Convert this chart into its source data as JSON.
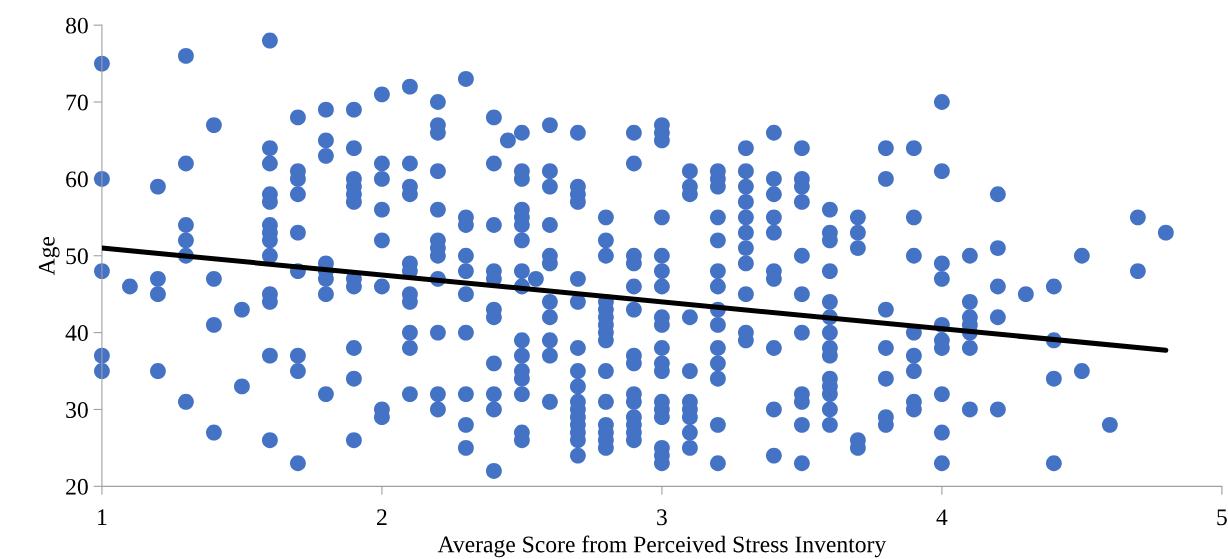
{
  "chart_data": {
    "type": "scatter",
    "xlabel": "Average Score from Perceived Stress Inventory",
    "ylabel": "Age",
    "xlim": [
      1,
      5
    ],
    "xticks": [
      1,
      2,
      3,
      4,
      5
    ],
    "ylim": [
      20,
      80
    ],
    "yticks": [
      20,
      30,
      40,
      50,
      60,
      70,
      80
    ],
    "series": [
      {
        "color": "#4472c4",
        "marker": "circle",
        "x": [
          1,
          1,
          1,
          1,
          1,
          1.1,
          1.2,
          1.2,
          1.2,
          1.2,
          1.3,
          1.3,
          1.3,
          1.3,
          1.3,
          1.3,
          1.4,
          1.4,
          1.4,
          1.4,
          1.5,
          1.5,
          1.6,
          1.6,
          1.6,
          1.6,
          1.6,
          1.6,
          1.6,
          1.6,
          1.6,
          1.6,
          1.6,
          1.6,
          1.6,
          1.7,
          1.7,
          1.7,
          1.7,
          1.7,
          1.7,
          1.7,
          1.7,
          1.7,
          1.8,
          1.8,
          1.8,
          1.8,
          1.8,
          1.8,
          1.8,
          1.8,
          1.9,
          1.9,
          1.9,
          1.9,
          1.9,
          1.9,
          1.9,
          1.9,
          1.9,
          1.9,
          1.9,
          2,
          2,
          2,
          2,
          2,
          2,
          2,
          2,
          2.1,
          2.1,
          2.1,
          2.1,
          2.1,
          2.1,
          2.1,
          2.1,
          2.1,
          2.1,
          2.1,
          2.2,
          2.2,
          2.2,
          2.2,
          2.2,
          2.2,
          2.2,
          2.2,
          2.2,
          2.2,
          2.2,
          2.2,
          2.3,
          2.3,
          2.3,
          2.3,
          2.3,
          2.3,
          2.3,
          2.3,
          2.3,
          2.3,
          2.4,
          2.4,
          2.4,
          2.4,
          2.4,
          2.4,
          2.4,
          2.4,
          2.4,
          2.4,
          2.4,
          2.45,
          2.5,
          2.5,
          2.5,
          2.5,
          2.5,
          2.5,
          2.5,
          2.5,
          2.5,
          2.5,
          2.5,
          2.5,
          2.5,
          2.5,
          2.5,
          2.5,
          2.55,
          2.6,
          2.6,
          2.6,
          2.6,
          2.6,
          2.6,
          2.6,
          2.6,
          2.6,
          2.6,
          2.6,
          2.7,
          2.7,
          2.7,
          2.7,
          2.7,
          2.7,
          2.7,
          2.7,
          2.7,
          2.7,
          2.7,
          2.7,
          2.7,
          2.7,
          2.7,
          2.7,
          2.8,
          2.8,
          2.8,
          2.8,
          2.8,
          2.8,
          2.8,
          2.8,
          2.8,
          2.8,
          2.8,
          2.8,
          2.8,
          2.8,
          2.8,
          2.9,
          2.9,
          2.9,
          2.9,
          2.9,
          2.9,
          2.9,
          2.9,
          2.9,
          2.9,
          2.9,
          2.9,
          2.9,
          2.9,
          3,
          3,
          3,
          3,
          3,
          3,
          3,
          3,
          3,
          3,
          3,
          3,
          3,
          3,
          3,
          3,
          3,
          3,
          3.1,
          3.1,
          3.1,
          3.1,
          3.1,
          3.1,
          3.1,
          3.1,
          3.1,
          3.1,
          3.2,
          3.2,
          3.2,
          3.2,
          3.2,
          3.2,
          3.2,
          3.2,
          3.2,
          3.2,
          3.2,
          3.2,
          3.2,
          3.2,
          3.3,
          3.3,
          3.3,
          3.3,
          3.3,
          3.3,
          3.3,
          3.3,
          3.3,
          3.3,
          3.3,
          3.4,
          3.4,
          3.4,
          3.4,
          3.4,
          3.4,
          3.4,
          3.4,
          3.4,
          3.4,
          3.5,
          3.5,
          3.5,
          3.5,
          3.5,
          3.5,
          3.5,
          3.5,
          3.5,
          3.5,
          3.5,
          3.6,
          3.6,
          3.6,
          3.6,
          3.6,
          3.6,
          3.6,
          3.6,
          3.6,
          3.6,
          3.6,
          3.6,
          3.6,
          3.6,
          3.7,
          3.7,
          3.7,
          3.7,
          3.7,
          3.8,
          3.8,
          3.8,
          3.8,
          3.8,
          3.8,
          3.8,
          3.9,
          3.9,
          3.9,
          3.9,
          3.9,
          3.9,
          3.9,
          3.9,
          4,
          4,
          4,
          4,
          4,
          4,
          4,
          4,
          4,
          4,
          4.1,
          4.1,
          4.1,
          4.1,
          4.1,
          4.1,
          4.1,
          4.2,
          4.2,
          4.2,
          4.2,
          4.2,
          4.3,
          4.4,
          4.4,
          4.4,
          4.4,
          4.5,
          4.5,
          4.6,
          4.7,
          4.7,
          4.8
        ],
        "values": [
          75,
          60,
          48,
          37,
          35,
          46,
          59,
          47,
          45,
          35,
          76,
          62,
          54,
          52,
          50,
          31,
          67,
          47,
          41,
          27,
          43,
          33,
          78,
          64,
          62,
          58,
          57,
          54,
          53,
          52,
          50,
          45,
          44,
          37,
          26,
          68,
          61,
          60,
          58,
          53,
          48,
          37,
          35,
          23,
          69,
          65,
          63,
          49,
          48,
          47,
          45,
          32,
          69,
          64,
          60,
          59,
          58,
          57,
          47,
          46,
          38,
          34,
          26,
          71,
          62,
          60,
          56,
          52,
          46,
          30,
          29,
          72,
          62,
          59,
          58,
          49,
          48,
          45,
          44,
          40,
          38,
          32,
          70,
          67,
          66,
          61,
          56,
          52,
          51,
          50,
          47,
          40,
          32,
          30,
          73,
          55,
          54,
          50,
          48,
          45,
          40,
          32,
          28,
          25,
          68,
          62,
          54,
          48,
          47,
          43,
          42,
          36,
          32,
          30,
          22,
          65,
          66,
          61,
          60,
          56,
          55,
          54,
          52,
          48,
          46,
          39,
          37,
          35,
          34,
          32,
          27,
          26,
          47,
          67,
          61,
          59,
          54,
          50,
          49,
          44,
          42,
          39,
          37,
          31,
          66,
          59,
          58,
          57,
          47,
          44,
          38,
          35,
          33,
          31,
          30,
          29,
          28,
          27,
          26,
          24,
          55,
          52,
          50,
          44,
          43,
          42,
          41,
          40,
          39,
          35,
          31,
          28,
          27,
          26,
          25,
          66,
          62,
          50,
          49,
          46,
          43,
          37,
          36,
          32,
          31,
          29,
          28,
          27,
          26,
          67,
          66,
          65,
          55,
          50,
          48,
          46,
          42,
          41,
          38,
          36,
          35,
          31,
          30,
          29,
          25,
          24,
          23,
          61,
          59,
          58,
          42,
          35,
          31,
          30,
          29,
          27,
          25,
          61,
          60,
          59,
          55,
          52,
          48,
          46,
          43,
          41,
          38,
          36,
          34,
          28,
          23,
          64,
          61,
          59,
          57,
          55,
          53,
          51,
          49,
          45,
          40,
          39,
          66,
          60,
          58,
          55,
          53,
          48,
          47,
          38,
          30,
          24,
          64,
          60,
          59,
          57,
          50,
          45,
          40,
          32,
          31,
          28,
          23,
          56,
          53,
          52,
          48,
          44,
          42,
          40,
          38,
          37,
          34,
          33,
          32,
          30,
          28,
          55,
          53,
          51,
          26,
          25,
          64,
          60,
          43,
          38,
          34,
          29,
          28,
          64,
          55,
          50,
          40,
          37,
          35,
          31,
          30,
          70,
          61,
          49,
          47,
          41,
          39,
          38,
          32,
          27,
          23,
          50,
          44,
          42,
          41,
          40,
          38,
          30,
          58,
          51,
          46,
          42,
          30,
          45,
          46,
          39,
          34,
          23,
          50,
          35,
          28,
          55,
          48,
          53
        ]
      },
      {
        "type": "line",
        "color": "#000000",
        "marker": "none",
        "x": [
          1,
          4.8
        ],
        "values": [
          51,
          37.7
        ]
      }
    ]
  }
}
